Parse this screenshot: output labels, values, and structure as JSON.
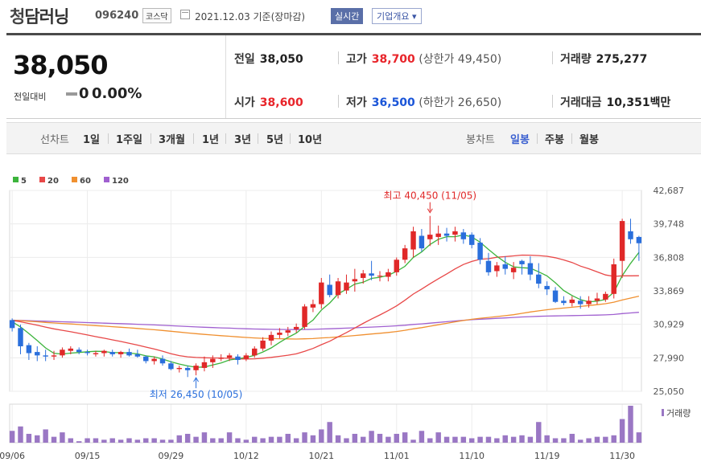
{
  "header": {
    "name_initial": "청",
    "name_rest": "담러닝",
    "code": "096240",
    "market": "코스닥",
    "date": "2021.12.03 기준(장마감)",
    "realtime_button": "실시간",
    "overview_button": "기업개요 ▾"
  },
  "price": {
    "current": "38,050",
    "change_label": "전일대비",
    "change": "0",
    "change_pct": "0.00%"
  },
  "stats": {
    "prev_close_label": "전일",
    "prev_close": "38,050",
    "high_label": "고가",
    "high": "38,700",
    "upper_limit": "(상한가 49,450)",
    "volume_label": "거래량",
    "volume": "275,277",
    "open_label": "시가",
    "open": "38,600",
    "low_label": "저가",
    "low": "36,500",
    "lower_limit": "(하한가 26,650)",
    "amount_label": "거래대금",
    "amount": "10,351",
    "amount_unit": "백만"
  },
  "tabs": {
    "line_chart": "선차트",
    "periods": [
      "1일",
      "1주일",
      "3개월",
      "1년",
      "3년",
      "5년",
      "10년"
    ],
    "candle_chart": "봉차트",
    "candle_periods": [
      "일봉",
      "주봉",
      "월봉"
    ],
    "selected_candle": "일봉"
  },
  "chart_data": {
    "type": "candlestick",
    "y_ticks": [
      42687,
      39748,
      36808,
      33869,
      30929,
      27990,
      25050
    ],
    "ylim": [
      25050,
      42687
    ],
    "x_ticks": [
      {
        "i": 0,
        "label": "09/06"
      },
      {
        "i": 9,
        "label": "09/15"
      },
      {
        "i": 19,
        "label": "09/29"
      },
      {
        "i": 28,
        "label": "10/12"
      },
      {
        "i": 37,
        "label": "10/21"
      },
      {
        "i": 46,
        "label": "11/01"
      },
      {
        "i": 55,
        "label": "11/10"
      },
      {
        "i": 64,
        "label": "11/19"
      },
      {
        "i": 73,
        "label": "11/30"
      }
    ],
    "legend": [
      {
        "label": "5",
        "color": "#3cb43c"
      },
      {
        "label": "20",
        "color": "#e84848"
      },
      {
        "label": "60",
        "color": "#f09030"
      },
      {
        "label": "120",
        "color": "#a060d0"
      }
    ],
    "up_color": "#e02828",
    "down_color": "#2a6fdc",
    "annotations": {
      "high_text": "최고 40,450 (11/05)",
      "high_index": 50,
      "high_value": 40450,
      "low_text": "최저 26,450 (10/05)",
      "low_index": 22,
      "low_value": 26450
    },
    "volume_label": "거래량",
    "volume_color": "#9a77c4",
    "candles": [
      [
        31300,
        31450,
        30300,
        30600
      ],
      [
        30600,
        30900,
        28300,
        29000
      ],
      [
        29100,
        29300,
        27800,
        28400
      ],
      [
        28500,
        29000,
        27700,
        28200
      ],
      [
        28200,
        28700,
        27700,
        28100
      ],
      [
        28100,
        28600,
        27800,
        28200
      ],
      [
        28200,
        28900,
        28000,
        28700
      ],
      [
        28600,
        29000,
        28300,
        28800
      ],
      [
        28700,
        28900,
        28300,
        28500
      ],
      [
        28500,
        28700,
        28200,
        28400
      ],
      [
        28300,
        28600,
        28100,
        28400
      ],
      [
        28400,
        28700,
        28100,
        28600
      ],
      [
        28500,
        28700,
        28100,
        28300
      ],
      [
        28300,
        28600,
        28000,
        28500
      ],
      [
        28500,
        28800,
        28100,
        28200
      ],
      [
        28300,
        28700,
        28000,
        28100
      ],
      [
        28100,
        28200,
        27500,
        27700
      ],
      [
        27700,
        28100,
        27400,
        27900
      ],
      [
        27900,
        28200,
        27300,
        27500
      ],
      [
        27500,
        27700,
        26900,
        27000
      ],
      [
        27000,
        27300,
        26700,
        27100
      ],
      [
        27100,
        27300,
        26300,
        26900
      ],
      [
        26900,
        27500,
        26450,
        27300
      ],
      [
        27100,
        28100,
        26800,
        27600
      ],
      [
        27600,
        28200,
        27100,
        27900
      ],
      [
        27900,
        28300,
        27700,
        28000
      ],
      [
        28000,
        28400,
        27700,
        28200
      ],
      [
        28100,
        28300,
        27400,
        27800
      ],
      [
        27900,
        28400,
        27700,
        28200
      ],
      [
        28200,
        29000,
        28000,
        28800
      ],
      [
        28800,
        29800,
        28600,
        29500
      ],
      [
        29500,
        30300,
        29100,
        30000
      ],
      [
        30000,
        30600,
        29700,
        30200
      ],
      [
        30200,
        30700,
        29900,
        30400
      ],
      [
        30500,
        31000,
        30200,
        30700
      ],
      [
        30700,
        32700,
        30500,
        32500
      ],
      [
        32400,
        33100,
        32000,
        32700
      ],
      [
        32700,
        35000,
        32300,
        34600
      ],
      [
        34400,
        35300,
        33300,
        33500
      ],
      [
        33500,
        35000,
        33200,
        34700
      ],
      [
        33900,
        35300,
        33600,
        34600
      ],
      [
        34700,
        35800,
        33800,
        34900
      ],
      [
        35000,
        35700,
        34500,
        35400
      ],
      [
        35400,
        36500,
        34800,
        35200
      ],
      [
        35200,
        35600,
        34700,
        35200
      ],
      [
        35100,
        35800,
        34700,
        35500
      ],
      [
        35500,
        36800,
        35200,
        36600
      ],
      [
        36600,
        37900,
        36300,
        37600
      ],
      [
        37500,
        39500,
        36800,
        39100
      ],
      [
        38700,
        39300,
        37300,
        37600
      ],
      [
        38400,
        40450,
        37800,
        38800
      ],
      [
        38600,
        39600,
        37900,
        38900
      ],
      [
        38900,
        39400,
        38200,
        38700
      ],
      [
        38800,
        39500,
        38200,
        39100
      ],
      [
        39000,
        39300,
        38000,
        38400
      ],
      [
        38800,
        39000,
        37600,
        37900
      ],
      [
        38100,
        38500,
        36200,
        36600
      ],
      [
        36500,
        37200,
        35200,
        35500
      ],
      [
        35600,
        36400,
        35100,
        36100
      ],
      [
        36200,
        36900,
        35300,
        35800
      ],
      [
        35500,
        36400,
        34900,
        35900
      ],
      [
        36500,
        36600,
        35300,
        36200
      ],
      [
        36300,
        36900,
        34800,
        35300
      ],
      [
        35300,
        36300,
        34100,
        34500
      ],
      [
        34300,
        34700,
        33500,
        34000
      ],
      [
        33900,
        34200,
        32800,
        32900
      ],
      [
        33000,
        33400,
        32600,
        32800
      ],
      [
        32800,
        33400,
        32500,
        33100
      ],
      [
        33000,
        33400,
        32300,
        32700
      ],
      [
        32700,
        33400,
        32400,
        33000
      ],
      [
        33000,
        33700,
        32700,
        33200
      ],
      [
        33100,
        33800,
        32900,
        33600
      ],
      [
        33600,
        36700,
        33200,
        36200
      ],
      [
        36500,
        40200,
        35000,
        40000
      ],
      [
        39100,
        40200,
        38000,
        38400
      ],
      [
        38600,
        38700,
        36500,
        38050
      ]
    ],
    "volumes": [
      8,
      11,
      6,
      5,
      9,
      4,
      7,
      3,
      1,
      3,
      3,
      2,
      3,
      2,
      3,
      2,
      3,
      3,
      2,
      2,
      5,
      6,
      4,
      7,
      3,
      3,
      7,
      3,
      2,
      4,
      3,
      4,
      4,
      6,
      3,
      7,
      5,
      9,
      14,
      5,
      3,
      6,
      4,
      8,
      6,
      4,
      6,
      7,
      2,
      8,
      3,
      7,
      4,
      4,
      4,
      3,
      4,
      4,
      3,
      5,
      4,
      5,
      4,
      14,
      5,
      3,
      3,
      6,
      2,
      3,
      4,
      4,
      5,
      16,
      25,
      7
    ]
  }
}
